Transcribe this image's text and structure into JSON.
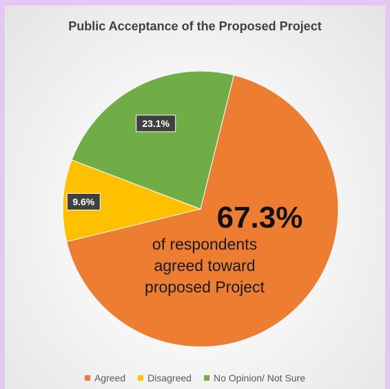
{
  "chart_data": {
    "type": "pie",
    "title": "Public Acceptance of the Proposed Project",
    "categories": [
      "Agreed",
      "Disagreed",
      "No Opinion/ Not Sure"
    ],
    "values": [
      67.3,
      9.6,
      23.1
    ],
    "value_labels": [
      "",
      "9.6%",
      "23.1%"
    ],
    "colors": [
      "#ed7d31",
      "#ffc000",
      "#70ad47"
    ],
    "legend_position": "bottom",
    "annotation": {
      "value": "67.3%",
      "lines": [
        "of respondents",
        "agreed toward",
        "proposed Project"
      ]
    }
  }
}
